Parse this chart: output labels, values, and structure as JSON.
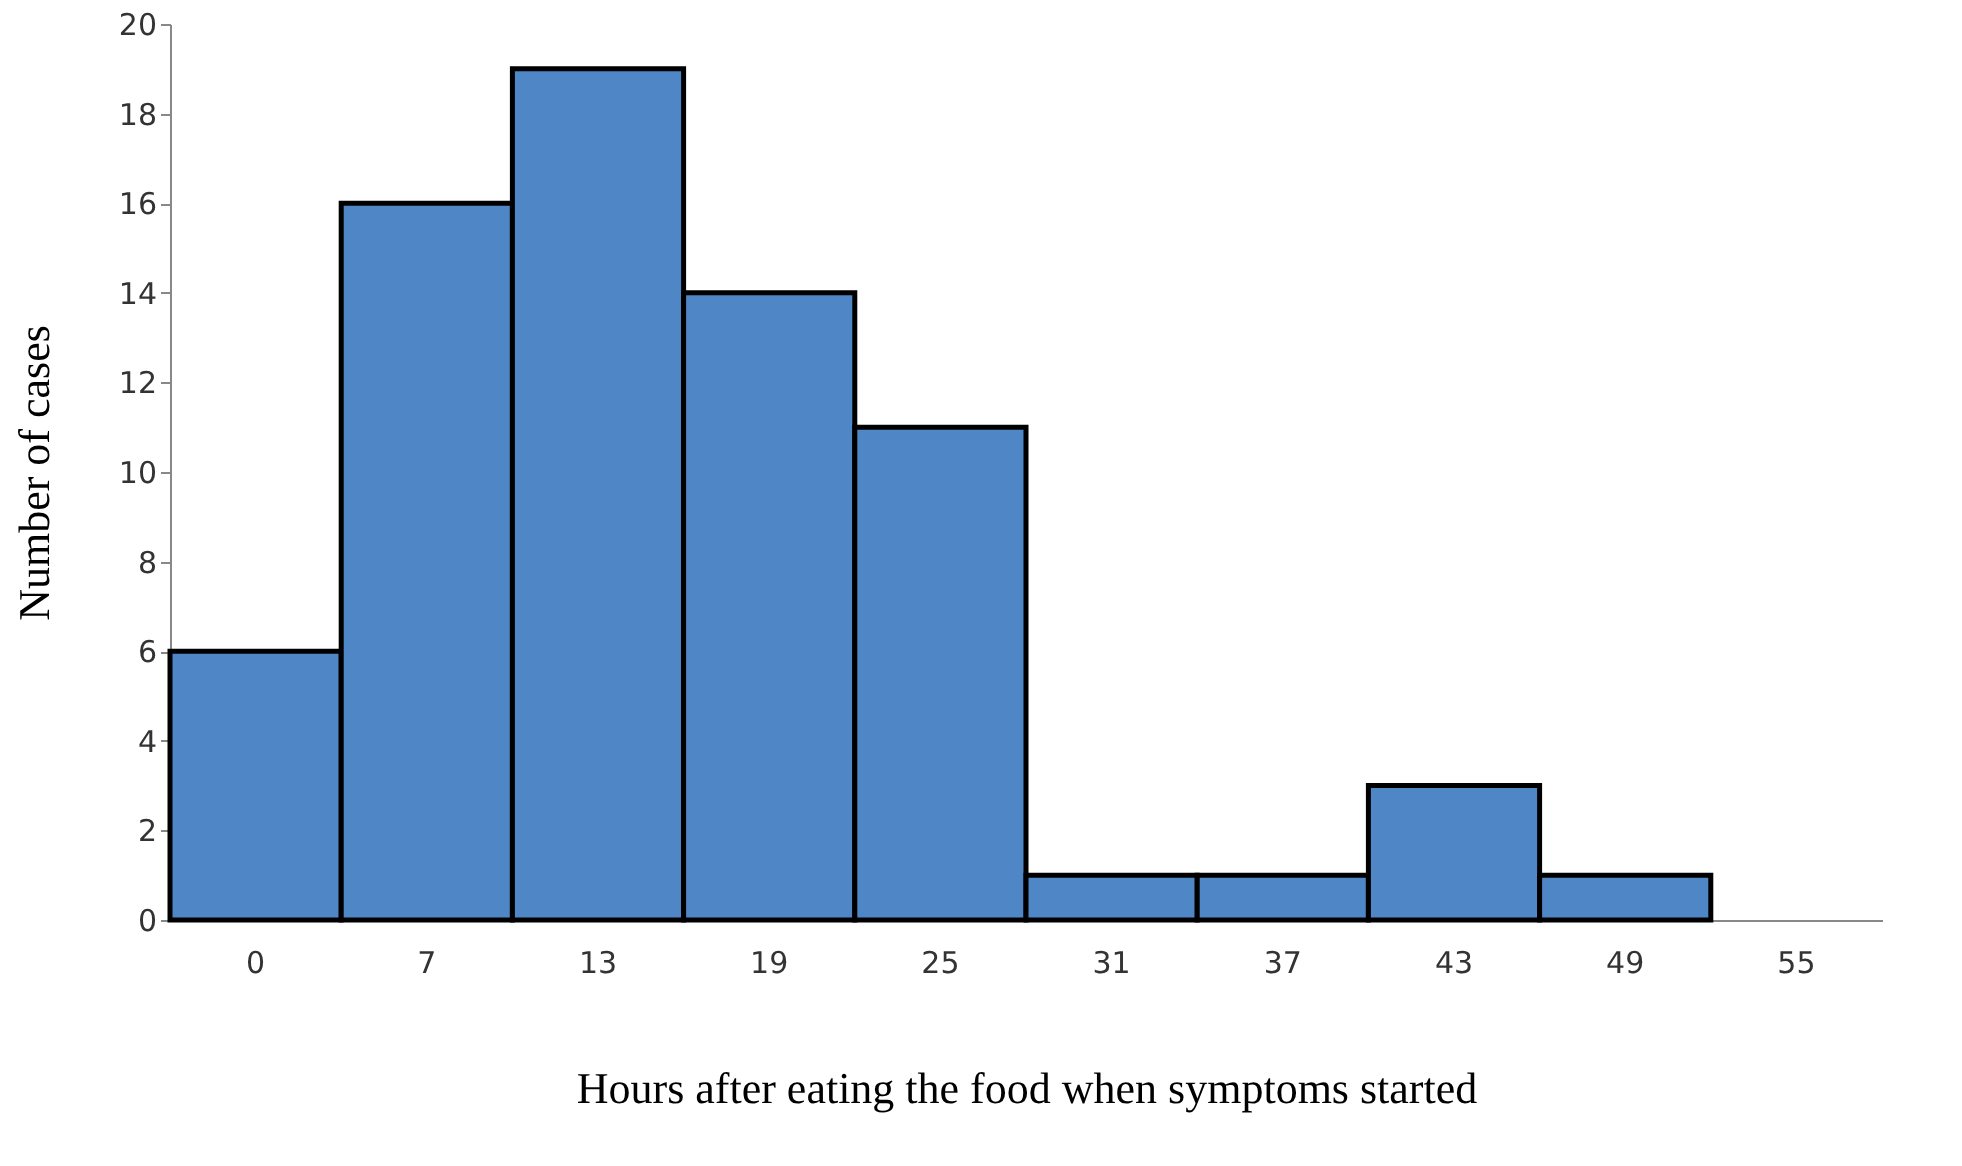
{
  "chart_data": {
    "type": "bar",
    "xlabel": "Hours after eating the food when symptoms started",
    "ylabel": "Number of cases",
    "categories": [
      "0",
      "7",
      "13",
      "19",
      "25",
      "31",
      "37",
      "43",
      "49",
      "55"
    ],
    "values": [
      6,
      16,
      19,
      14,
      11,
      1,
      1,
      3,
      1,
      null
    ],
    "color": "#4f86c6",
    "ylim": [
      0,
      20
    ],
    "yticks": [
      0,
      2,
      4,
      6,
      8,
      10,
      12,
      14,
      16,
      18,
      20
    ],
    "grid": false
  }
}
